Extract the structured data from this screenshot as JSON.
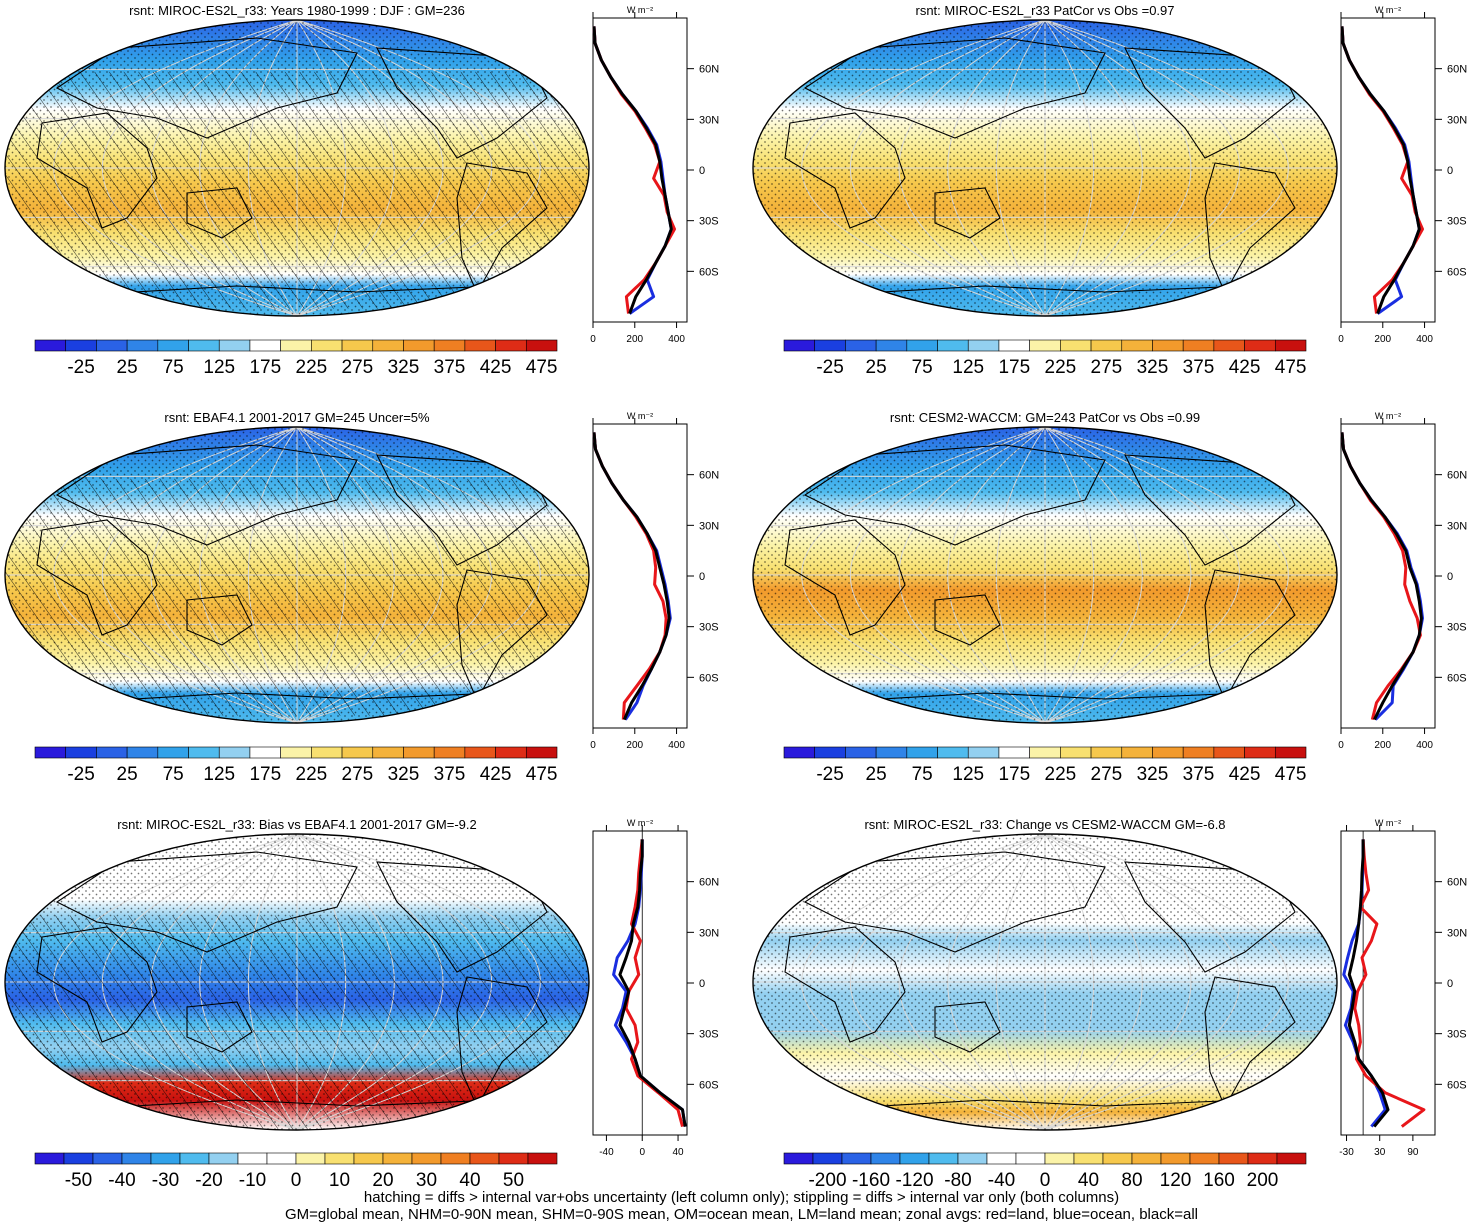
{
  "footer": {
    "line1": "hatching = diffs > internal var+obs uncertainty (left column only); stippling = diffs > internal var only (both columns)",
    "line2": "GM=global mean, NHM=0-90N mean, SHM=0-90S mean, OM=ocean mean, LM=land mean; zonal avgs: red=land, blue=ocean, black=all"
  },
  "chart_data": [
    {
      "type": "heatmap",
      "title": "rsnt: MIROC-ES2L_r33: Years 1980-1999 : DJF : GM=236",
      "colorbar": {
        "labels": [
          "-25",
          "25",
          "75",
          "125",
          "175",
          "225",
          "275",
          "325",
          "375",
          "425",
          "475"
        ],
        "range": [
          -50,
          500
        ]
      },
      "hatching": true,
      "stippling": true,
      "zonal": {
        "units": "W m⁻²",
        "yticks": [
          "60N",
          "30N",
          "0",
          "30S",
          "60S"
        ],
        "xticks": [
          "0",
          "200",
          "400"
        ],
        "xlim": [
          0,
          450
        ],
        "lat": [
          85,
          75,
          65,
          55,
          45,
          35,
          25,
          15,
          5,
          -5,
          -15,
          -25,
          -35,
          -45,
          -55,
          -65,
          -75,
          -85
        ],
        "all": [
          5,
          10,
          40,
          85,
          140,
          205,
          255,
          300,
          320,
          330,
          345,
          360,
          375,
          345,
          300,
          255,
          205,
          175
        ],
        "land": [
          5,
          10,
          40,
          85,
          135,
          200,
          250,
          295,
          320,
          290,
          340,
          355,
          390,
          345,
          300,
          245,
          160,
          170
        ],
        "ocean": [
          5,
          10,
          40,
          85,
          140,
          205,
          260,
          305,
          325,
          335,
          345,
          360,
          375,
          345,
          300,
          260,
          290,
          175
        ]
      }
    },
    {
      "type": "heatmap",
      "title": "rsnt: MIROC-ES2L_r33 PatCor vs Obs =0.97",
      "colorbar": {
        "labels": [
          "-25",
          "25",
          "75",
          "125",
          "175",
          "225",
          "275",
          "325",
          "375",
          "425",
          "475"
        ],
        "range": [
          -50,
          500
        ]
      },
      "hatching": false,
      "stippling": true,
      "zonal": {
        "units": "W m⁻²",
        "yticks": [
          "60N",
          "30N",
          "0",
          "30S",
          "60S"
        ],
        "xticks": [
          "0",
          "200",
          "400"
        ],
        "xlim": [
          0,
          450
        ],
        "lat": [
          85,
          75,
          65,
          55,
          45,
          35,
          25,
          15,
          5,
          -5,
          -15,
          -25,
          -35,
          -45,
          -55,
          -65,
          -75,
          -85
        ],
        "all": [
          5,
          10,
          40,
          85,
          140,
          205,
          255,
          300,
          320,
          330,
          345,
          360,
          375,
          345,
          300,
          255,
          205,
          175
        ],
        "land": [
          5,
          10,
          40,
          85,
          135,
          200,
          250,
          295,
          320,
          290,
          340,
          355,
          390,
          345,
          300,
          245,
          160,
          170
        ],
        "ocean": [
          5,
          10,
          40,
          85,
          140,
          205,
          260,
          305,
          325,
          335,
          345,
          360,
          375,
          345,
          300,
          260,
          290,
          175
        ]
      }
    },
    {
      "type": "heatmap",
      "title": "rsnt: EBAF4.1 2001-2017 GM=245 Uncer=5%",
      "colorbar": {
        "labels": [
          "-25",
          "25",
          "75",
          "125",
          "175",
          "225",
          "275",
          "325",
          "375",
          "425",
          "475"
        ],
        "range": [
          -50,
          500
        ]
      },
      "hatching": true,
      "stippling": true,
      "zonal": {
        "units": "W m⁻²",
        "yticks": [
          "60N",
          "30N",
          "0",
          "30S",
          "60S"
        ],
        "xticks": [
          "0",
          "200",
          "400"
        ],
        "xlim": [
          0,
          450
        ],
        "lat": [
          85,
          75,
          65,
          55,
          45,
          35,
          25,
          15,
          5,
          -5,
          -15,
          -25,
          -35,
          -45,
          -55,
          -65,
          -75,
          -85
        ],
        "all": [
          5,
          12,
          45,
          90,
          145,
          210,
          260,
          300,
          320,
          340,
          355,
          365,
          350,
          320,
          280,
          235,
          185,
          150
        ],
        "land": [
          5,
          12,
          45,
          90,
          145,
          205,
          255,
          290,
          300,
          295,
          335,
          350,
          345,
          320,
          270,
          210,
          150,
          145
        ],
        "ocean": [
          5,
          12,
          45,
          90,
          145,
          210,
          260,
          305,
          325,
          345,
          360,
          370,
          350,
          320,
          280,
          240,
          210,
          155
        ]
      }
    },
    {
      "type": "heatmap",
      "title": "rsnt: CESM2-WACCM: GM=243 PatCor vs Obs =0.99",
      "colorbar": {
        "labels": [
          "-25",
          "25",
          "75",
          "125",
          "175",
          "225",
          "275",
          "325",
          "375",
          "425",
          "475"
        ],
        "range": [
          -50,
          500
        ]
      },
      "hatching": false,
      "stippling": true,
      "zonal": {
        "units": "W m⁻²",
        "yticks": [
          "60N",
          "30N",
          "0",
          "30S",
          "60S"
        ],
        "xticks": [
          "0",
          "200",
          "400"
        ],
        "xlim": [
          0,
          450
        ],
        "lat": [
          85,
          75,
          65,
          55,
          45,
          35,
          25,
          15,
          5,
          -5,
          -15,
          -25,
          -35,
          -45,
          -55,
          -65,
          -75,
          -85
        ],
        "all": [
          5,
          12,
          45,
          90,
          145,
          210,
          265,
          310,
          330,
          360,
          375,
          385,
          375,
          345,
          295,
          245,
          200,
          160
        ],
        "land": [
          5,
          12,
          45,
          90,
          140,
          205,
          255,
          295,
          310,
          305,
          330,
          365,
          380,
          345,
          290,
          225,
          170,
          150
        ],
        "ocean": [
          5,
          12,
          45,
          90,
          145,
          210,
          270,
          315,
          335,
          365,
          380,
          390,
          375,
          345,
          300,
          250,
          245,
          165
        ]
      }
    },
    {
      "type": "heatmap",
      "title": "rsnt: MIROC-ES2L_r33: Bias vs EBAF4.1 2001-2017 GM=-9.2",
      "colorbar": {
        "labels": [
          "-50",
          "-40",
          "-30",
          "-20",
          "-10",
          "0",
          "10",
          "20",
          "30",
          "40",
          "50"
        ],
        "range": [
          -55,
          55
        ]
      },
      "hatching": true,
      "stippling": true,
      "zonal": {
        "units": "W m⁻²",
        "yticks": [
          "60N",
          "30N",
          "0",
          "30S",
          "60S"
        ],
        "xticks": [
          "-40",
          "0",
          "40"
        ],
        "xlim": [
          -55,
          50
        ],
        "lat": [
          85,
          75,
          65,
          55,
          45,
          35,
          25,
          15,
          5,
          -5,
          -15,
          -25,
          -35,
          -45,
          -55,
          -65,
          -75,
          -85
        ],
        "all": [
          0,
          0,
          -2,
          -3,
          -5,
          -10,
          -12,
          -18,
          -25,
          -15,
          -20,
          -25,
          -15,
          -8,
          -2,
          20,
          45,
          48
        ],
        "land": [
          0,
          -2,
          -4,
          -5,
          -8,
          -12,
          -2,
          -8,
          -4,
          -15,
          -18,
          -8,
          -5,
          -12,
          -5,
          18,
          40,
          45
        ],
        "ocean": [
          0,
          0,
          -1,
          -2,
          -4,
          -8,
          -16,
          -28,
          -32,
          -18,
          -22,
          -30,
          -18,
          -8,
          -2,
          20,
          45,
          48
        ]
      }
    },
    {
      "type": "heatmap",
      "title": "rsnt: MIROC-ES2L_r33: Change vs CESM2-WACCM GM=-6.8",
      "colorbar": {
        "labels": [
          "-200",
          "-160",
          "-120",
          "-80",
          "-40",
          "0",
          "40",
          "80",
          "120",
          "160",
          "200"
        ],
        "range": [
          -220,
          220
        ]
      },
      "hatching": false,
      "stippling": true,
      "zonal": {
        "units": "W m⁻²",
        "yticks": [
          "60N",
          "30N",
          "0",
          "30S",
          "60S"
        ],
        "xticks": [
          "-30",
          "30",
          "90"
        ],
        "xlim": [
          -40,
          130
        ],
        "lat": [
          85,
          75,
          65,
          55,
          45,
          35,
          25,
          15,
          5,
          -5,
          -15,
          -25,
          -35,
          -45,
          -55,
          -65,
          -75,
          -85
        ],
        "all": [
          0,
          0,
          -2,
          -3,
          -5,
          -8,
          -12,
          -18,
          -25,
          -15,
          -20,
          -25,
          -15,
          -8,
          15,
          35,
          45,
          20
        ],
        "land": [
          0,
          2,
          5,
          10,
          -5,
          25,
          15,
          -2,
          5,
          -10,
          -15,
          -8,
          -5,
          -12,
          5,
          40,
          110,
          70
        ],
        "ocean": [
          0,
          0,
          -1,
          -2,
          -4,
          -8,
          -20,
          -28,
          -35,
          -18,
          -22,
          -32,
          -18,
          -8,
          15,
          30,
          40,
          15
        ]
      }
    }
  ]
}
